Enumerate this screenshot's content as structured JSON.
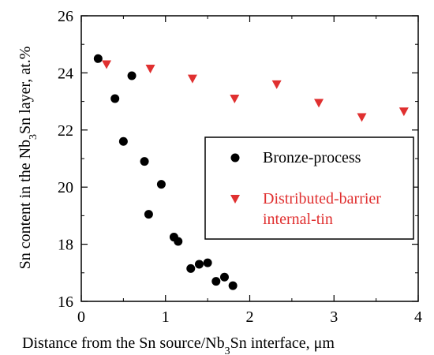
{
  "chart_data": {
    "type": "scatter",
    "xlabel": "Distance from the Sn source/Nb₃Sn interface, μm",
    "ylabel": "Sn content in the Nb₃Sn layer, at.%",
    "xlim": [
      0,
      4
    ],
    "ylim": [
      16,
      26
    ],
    "x_ticks": [
      "0",
      "1",
      "2",
      "3",
      "4"
    ],
    "y_ticks": [
      "16",
      "18",
      "20",
      "22",
      "24",
      "26"
    ],
    "grid": false,
    "legend_position": "center-right",
    "series": [
      {
        "name": "Bronze-process",
        "marker": "circle",
        "color": "#000000",
        "text_color": "#000000",
        "points": [
          {
            "x": 0.2,
            "y": 24.5
          },
          {
            "x": 0.6,
            "y": 23.9
          },
          {
            "x": 0.4,
            "y": 23.1
          },
          {
            "x": 0.5,
            "y": 21.6
          },
          {
            "x": 0.75,
            "y": 20.9
          },
          {
            "x": 0.95,
            "y": 20.1
          },
          {
            "x": 0.8,
            "y": 19.05
          },
          {
            "x": 1.1,
            "y": 18.25
          },
          {
            "x": 1.15,
            "y": 18.1
          },
          {
            "x": 1.3,
            "y": 17.15
          },
          {
            "x": 1.4,
            "y": 17.3
          },
          {
            "x": 1.5,
            "y": 17.35
          },
          {
            "x": 1.6,
            "y": 16.7
          },
          {
            "x": 1.7,
            "y": 16.85
          },
          {
            "x": 1.8,
            "y": 16.55
          }
        ]
      },
      {
        "name": "Distributed-barrier internal-tin",
        "name_lines": [
          "Distributed-barrier",
          "internal-tin"
        ],
        "marker": "triangle-down",
        "color": "#e03030",
        "text_color": "#e03030",
        "points": [
          {
            "x": 0.3,
            "y": 24.3
          },
          {
            "x": 0.82,
            "y": 24.15
          },
          {
            "x": 1.32,
            "y": 23.8
          },
          {
            "x": 1.82,
            "y": 23.1
          },
          {
            "x": 2.32,
            "y": 23.6
          },
          {
            "x": 2.82,
            "y": 22.95
          },
          {
            "x": 3.33,
            "y": 22.45
          },
          {
            "x": 3.83,
            "y": 22.65
          }
        ]
      }
    ]
  }
}
